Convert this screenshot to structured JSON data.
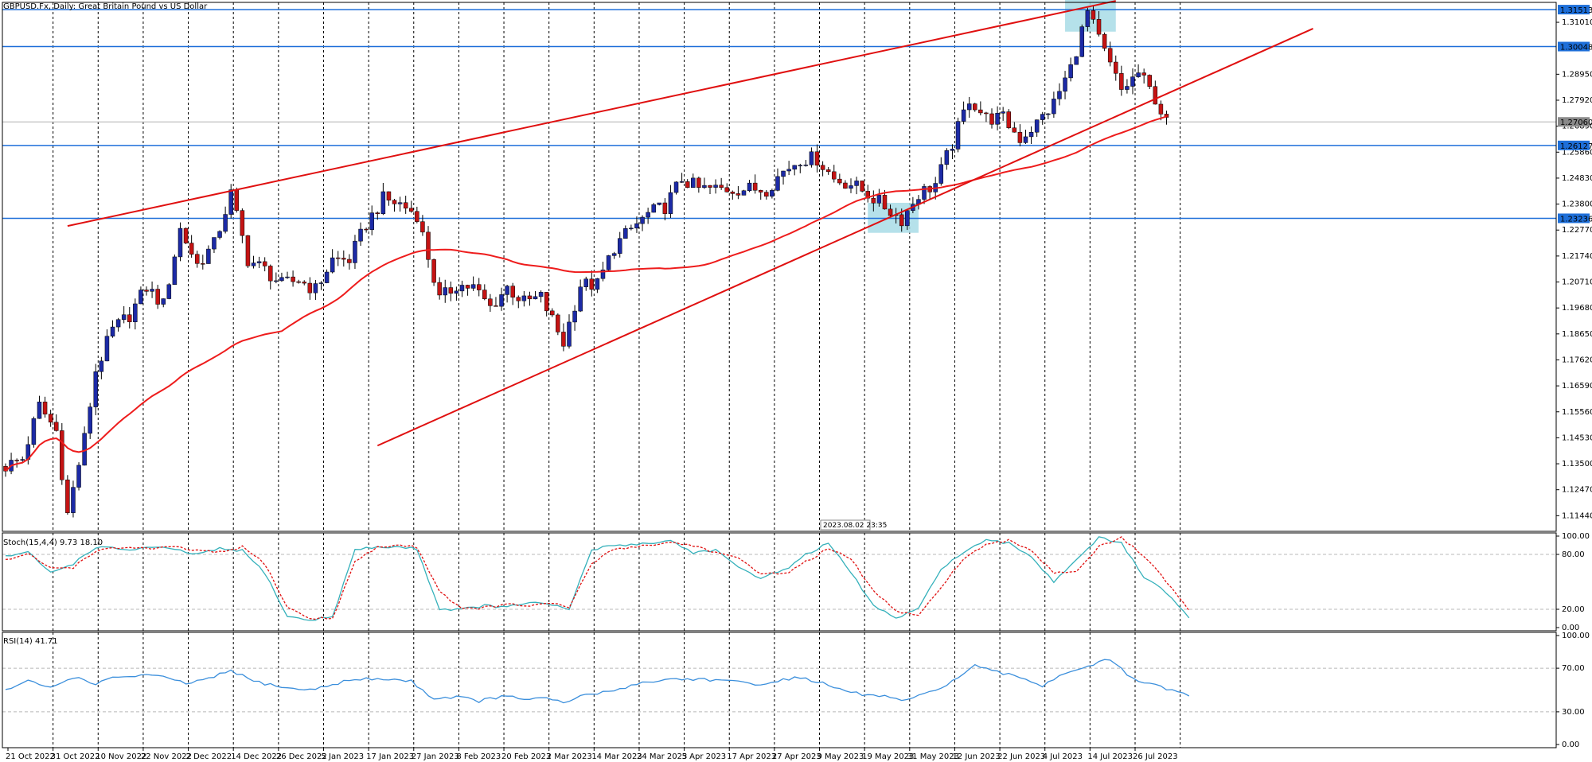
{
  "chart_data": {
    "type": "candlestick",
    "title": "GBPUSD.Fx, Daily:  Great Britain Pound vs US Dollar",
    "time_label": "2023.08.02 23:35",
    "price_axis": {
      "ticks": [
        "1.31010",
        "1.28950",
        "1.27920",
        "1.26890",
        "1.25860",
        "1.24830",
        "1.23800",
        "1.22770",
        "1.21740",
        "1.20710",
        "1.19680",
        "1.18650",
        "1.17620",
        "1.16590",
        "1.15560",
        "1.14530",
        "1.13500",
        "1.12470",
        "1.11440"
      ],
      "highlight_labels": [
        "1.31513",
        "1.30048",
        "1.26127",
        "1.23236"
      ],
      "current_price": "1.27060",
      "ylim": [
        1.1082,
        1.318
      ]
    },
    "x_axis": {
      "labels": [
        "21 Oct 2022",
        "31 Oct 2022",
        "10 Nov 2022",
        "22 Nov 2022",
        "2 Dec 2022",
        "14 Dec 2022",
        "26 Dec 2022",
        "5 Jan 2023",
        "17 Jan 2023",
        "27 Jan 2023",
        "8 Feb 2023",
        "20 Feb 2023",
        "2 Mar 2023",
        "14 Mar 2023",
        "24 Mar 2023",
        "5 Apr 2023",
        "17 Apr 2023",
        "27 Apr 2023",
        "9 May 2023",
        "19 May 2023",
        "31 May 2023",
        "12 Jun 2023",
        "22 Jun 2023",
        "4 Jul 2023",
        "14 Jul 2023",
        "26 Jul 2023"
      ],
      "label_bars": [
        0,
        8,
        16,
        24,
        32,
        40,
        48,
        56,
        64,
        72,
        80,
        88,
        96,
        104,
        112,
        120,
        128,
        136,
        144,
        152,
        160,
        168,
        176,
        184,
        192,
        200
      ]
    },
    "colors": {
      "bull": "#1c2aa6",
      "bear": "#c41313",
      "ma": "#ee1c1c",
      "level": "#1e6fd9",
      "trend": "#e01010",
      "zone": "#a8dce6",
      "stoch_main": "#35b1bb",
      "stoch_signal": "#e01010",
      "rsi": "#3b8fdc"
    },
    "horizontal_levels": [
      1.31513,
      1.30048,
      1.26127,
      1.23236
    ],
    "trendlines": [
      {
        "from_bar": 11,
        "from_price": 1.2293,
        "to_bar": 197,
        "to_price": 1.3186
      },
      {
        "from_bar": 66,
        "from_price": 1.1422,
        "to_bar": 232,
        "to_price": 1.3076
      }
    ],
    "zones": [
      {
        "from_bar": 153,
        "to_bar": 162,
        "low": 1.2266,
        "high": 1.2385
      },
      {
        "from_bar": 188,
        "to_bar": 197,
        "low": 1.3064,
        "high": 1.319
      }
    ],
    "anchors": [
      [
        0,
        1.134
      ],
      [
        3,
        1.137
      ],
      [
        6,
        1.158
      ],
      [
        9,
        1.148
      ],
      [
        11,
        1.115
      ],
      [
        14,
        1.145
      ],
      [
        16,
        1.172
      ],
      [
        19,
        1.188
      ],
      [
        22,
        1.194
      ],
      [
        25,
        1.205
      ],
      [
        28,
        1.198
      ],
      [
        31,
        1.228
      ],
      [
        34,
        1.214
      ],
      [
        37,
        1.222
      ],
      [
        40,
        1.242
      ],
      [
        43,
        1.216
      ],
      [
        46,
        1.212
      ],
      [
        49,
        1.206
      ],
      [
        52,
        1.208
      ],
      [
        55,
        1.204
      ],
      [
        58,
        1.216
      ],
      [
        61,
        1.216
      ],
      [
        64,
        1.23
      ],
      [
        67,
        1.24
      ],
      [
        70,
        1.238
      ],
      [
        73,
        1.234
      ],
      [
        77,
        1.2
      ],
      [
        80,
        1.206
      ],
      [
        83,
        1.205
      ],
      [
        86,
        1.197
      ],
      [
        89,
        1.205
      ],
      [
        92,
        1.199
      ],
      [
        95,
        1.201
      ],
      [
        99,
        1.183
      ],
      [
        102,
        1.206
      ],
      [
        105,
        1.206
      ],
      [
        108,
        1.221
      ],
      [
        111,
        1.228
      ],
      [
        114,
        1.234
      ],
      [
        117,
        1.237
      ],
      [
        120,
        1.248
      ],
      [
        123,
        1.244
      ],
      [
        126,
        1.244
      ],
      [
        129,
        1.244
      ],
      [
        132,
        1.244
      ],
      [
        135,
        1.244
      ],
      [
        138,
        1.251
      ],
      [
        141,
        1.256
      ],
      [
        144,
        1.256
      ],
      [
        147,
        1.248
      ],
      [
        150,
        1.246
      ],
      [
        153,
        1.242
      ],
      [
        156,
        1.237
      ],
      [
        159,
        1.232
      ],
      [
        162,
        1.242
      ],
      [
        165,
        1.246
      ],
      [
        168,
        1.262
      ],
      [
        171,
        1.28
      ],
      [
        174,
        1.272
      ],
      [
        177,
        1.272
      ],
      [
        180,
        1.264
      ],
      [
        183,
        1.27
      ],
      [
        186,
        1.278
      ],
      [
        189,
        1.292
      ],
      [
        192,
        1.314
      ],
      [
        195,
        1.298
      ],
      [
        198,
        1.283
      ],
      [
        201,
        1.29
      ],
      [
        204,
        1.28
      ],
      [
        206,
        1.27
      ]
    ],
    "stochastic": {
      "label": "Stoch(15,4,4) 9.73 18.10",
      "ticks": [
        "100.00",
        "80.00",
        "20.00",
        "0.00"
      ],
      "ylim": [
        0,
        100
      ],
      "main_anchors": [
        [
          0,
          78
        ],
        [
          4,
          82
        ],
        [
          8,
          60
        ],
        [
          12,
          70
        ],
        [
          16,
          88
        ],
        [
          22,
          85
        ],
        [
          26,
          88
        ],
        [
          30,
          85
        ],
        [
          34,
          80
        ],
        [
          38,
          86
        ],
        [
          42,
          84
        ],
        [
          46,
          60
        ],
        [
          50,
          12
        ],
        [
          54,
          8
        ],
        [
          58,
          12
        ],
        [
          62,
          85
        ],
        [
          66,
          88
        ],
        [
          70,
          88
        ],
        [
          73,
          86
        ],
        [
          77,
          20
        ],
        [
          81,
          20
        ],
        [
          85,
          24
        ],
        [
          89,
          22
        ],
        [
          93,
          28
        ],
        [
          97,
          24
        ],
        [
          100,
          20
        ],
        [
          104,
          85
        ],
        [
          108,
          90
        ],
        [
          114,
          92
        ],
        [
          118,
          95
        ],
        [
          122,
          82
        ],
        [
          126,
          85
        ],
        [
          130,
          65
        ],
        [
          134,
          55
        ],
        [
          138,
          62
        ],
        [
          142,
          80
        ],
        [
          146,
          92
        ],
        [
          150,
          60
        ],
        [
          154,
          24
        ],
        [
          158,
          10
        ],
        [
          162,
          20
        ],
        [
          166,
          65
        ],
        [
          170,
          82
        ],
        [
          174,
          95
        ],
        [
          178,
          92
        ],
        [
          182,
          78
        ],
        [
          186,
          50
        ],
        [
          190,
          75
        ],
        [
          194,
          98
        ],
        [
          198,
          92
        ],
        [
          202,
          55
        ],
        [
          206,
          38
        ],
        [
          210,
          10
        ]
      ],
      "signal_anchors": [
        [
          0,
          74
        ],
        [
          4,
          80
        ],
        [
          8,
          65
        ],
        [
          12,
          66
        ],
        [
          16,
          84
        ],
        [
          22,
          88
        ],
        [
          26,
          86
        ],
        [
          30,
          88
        ],
        [
          34,
          84
        ],
        [
          38,
          82
        ],
        [
          42,
          88
        ],
        [
          46,
          70
        ],
        [
          50,
          22
        ],
        [
          54,
          10
        ],
        [
          58,
          10
        ],
        [
          62,
          72
        ],
        [
          66,
          88
        ],
        [
          70,
          90
        ],
        [
          73,
          88
        ],
        [
          77,
          40
        ],
        [
          81,
          20
        ],
        [
          85,
          22
        ],
        [
          89,
          25
        ],
        [
          93,
          24
        ],
        [
          97,
          26
        ],
        [
          100,
          22
        ],
        [
          104,
          70
        ],
        [
          108,
          86
        ],
        [
          114,
          90
        ],
        [
          118,
          93
        ],
        [
          122,
          90
        ],
        [
          126,
          82
        ],
        [
          130,
          75
        ],
        [
          134,
          60
        ],
        [
          138,
          58
        ],
        [
          142,
          72
        ],
        [
          146,
          86
        ],
        [
          150,
          75
        ],
        [
          154,
          40
        ],
        [
          158,
          18
        ],
        [
          162,
          12
        ],
        [
          166,
          45
        ],
        [
          170,
          75
        ],
        [
          174,
          90
        ],
        [
          178,
          95
        ],
        [
          182,
          85
        ],
        [
          186,
          60
        ],
        [
          190,
          62
        ],
        [
          194,
          88
        ],
        [
          198,
          98
        ],
        [
          202,
          78
        ],
        [
          206,
          50
        ],
        [
          210,
          18
        ]
      ]
    },
    "rsi": {
      "label": "RSI(14) 41.71",
      "ticks": [
        "100.00",
        "70.00",
        "30.00",
        "0.00"
      ],
      "ylim": [
        0,
        100
      ],
      "anchors": [
        [
          0,
          50
        ],
        [
          4,
          58
        ],
        [
          8,
          52
        ],
        [
          12,
          62
        ],
        [
          16,
          56
        ],
        [
          20,
          62
        ],
        [
          26,
          64
        ],
        [
          32,
          56
        ],
        [
          36,
          60
        ],
        [
          40,
          68
        ],
        [
          44,
          58
        ],
        [
          48,
          54
        ],
        [
          52,
          50
        ],
        [
          56,
          52
        ],
        [
          60,
          58
        ],
        [
          64,
          60
        ],
        [
          68,
          60
        ],
        [
          72,
          58
        ],
        [
          76,
          42
        ],
        [
          80,
          44
        ],
        [
          84,
          40
        ],
        [
          88,
          44
        ],
        [
          92,
          42
        ],
        [
          96,
          42
        ],
        [
          99,
          38
        ],
        [
          103,
          46
        ],
        [
          107,
          48
        ],
        [
          112,
          56
        ],
        [
          118,
          60
        ],
        [
          124,
          60
        ],
        [
          128,
          58
        ],
        [
          132,
          56
        ],
        [
          136,
          56
        ],
        [
          140,
          62
        ],
        [
          144,
          58
        ],
        [
          148,
          50
        ],
        [
          152,
          46
        ],
        [
          156,
          44
        ],
        [
          160,
          40
        ],
        [
          164,
          48
        ],
        [
          168,
          58
        ],
        [
          172,
          72
        ],
        [
          176,
          66
        ],
        [
          180,
          62
        ],
        [
          184,
          54
        ],
        [
          188,
          66
        ],
        [
          192,
          72
        ],
        [
          196,
          78
        ],
        [
          200,
          60
        ],
        [
          204,
          54
        ],
        [
          208,
          48
        ],
        [
          210,
          44
        ]
      ]
    }
  }
}
